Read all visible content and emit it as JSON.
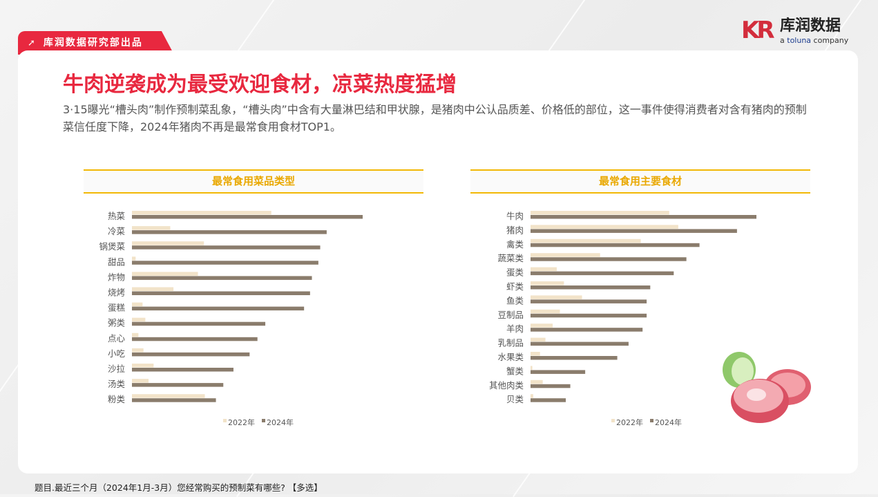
{
  "header": {
    "tab_label": "库润数据研究部出品",
    "logo_mark": "KR",
    "logo_name": "库润数据",
    "logo_tagline_prefix": "a ",
    "logo_tagline_brand": "toluna",
    "logo_tagline_suffix": " company"
  },
  "main": {
    "title": "牛肉逆袭成为最受欢迎食材，凉菜热度猛增",
    "subtitle": "3·15曝光“槽头肉”制作预制菜乱象，“槽头肉”中含有大量淋巴结和甲状腺，是猪肉中公认品质差、价格低的部位，这一事件使得消费者对含有猪肉的预制菜信任度下降，2024年猪肉不再是最常食用食材TOP1。"
  },
  "footer": {
    "note": "题目.最近三个月（2024年1月-3月）您经常购买的预制菜有哪些? 【多选】"
  },
  "colors": {
    "accent": "#e8283f",
    "header_gold": "#e9a800",
    "series_2022": "#f2e3c9",
    "series_2024": "#8a7c6c"
  },
  "chart_data": [
    {
      "type": "bar",
      "orientation": "horizontal",
      "title": "最常食用菜品类型",
      "legend_position": "bottom",
      "grid": false,
      "categories": [
        "热菜",
        "冷菜",
        "锅煲菜",
        "甜品",
        "炸物",
        "烧烤",
        "蛋糕",
        "粥类",
        "点心",
        "小吃",
        "沙拉",
        "汤类",
        "粉类"
      ],
      "series": [
        {
          "name": "2022年",
          "values": [
            30.2,
            8.3,
            15.6,
            0.8,
            14.3,
            9.0,
            2.3,
            2.9,
            1.4,
            2.5,
            4.7,
            3.6,
            15.8
          ]
        },
        {
          "name": "2024年",
          "values": [
            50,
            42.2,
            40.8,
            40.4,
            39,
            38.6,
            37.3,
            28.9,
            27.2,
            25.5,
            22,
            19.8,
            18.2
          ]
        }
      ]
    },
    {
      "type": "bar",
      "orientation": "horizontal",
      "title": "最常食用主要食材",
      "legend_position": "bottom",
      "grid": false,
      "categories": [
        "牛肉",
        "猪肉",
        "禽类",
        "蔬菜类",
        "蛋类",
        "虾类",
        "鱼类",
        "豆制品",
        "羊肉",
        "乳制品",
        "水果类",
        "蟹类",
        "其他肉类",
        "贝类"
      ],
      "series": [
        {
          "name": "2022年",
          "values": [
            30.7,
            32.7,
            24.4,
            15.4,
            5.8,
            7.4,
            11.4,
            6.5,
            4.9,
            3.3,
            2.1,
            0.4,
            2.7,
            0.6
          ]
        },
        {
          "name": "2024年",
          "values": [
            50,
            45.7,
            37.4,
            34.5,
            31.7,
            26.5,
            25.7,
            25.7,
            24.8,
            21.7,
            19.2,
            12.1,
            8.8,
            7.8
          ]
        }
      ]
    }
  ]
}
